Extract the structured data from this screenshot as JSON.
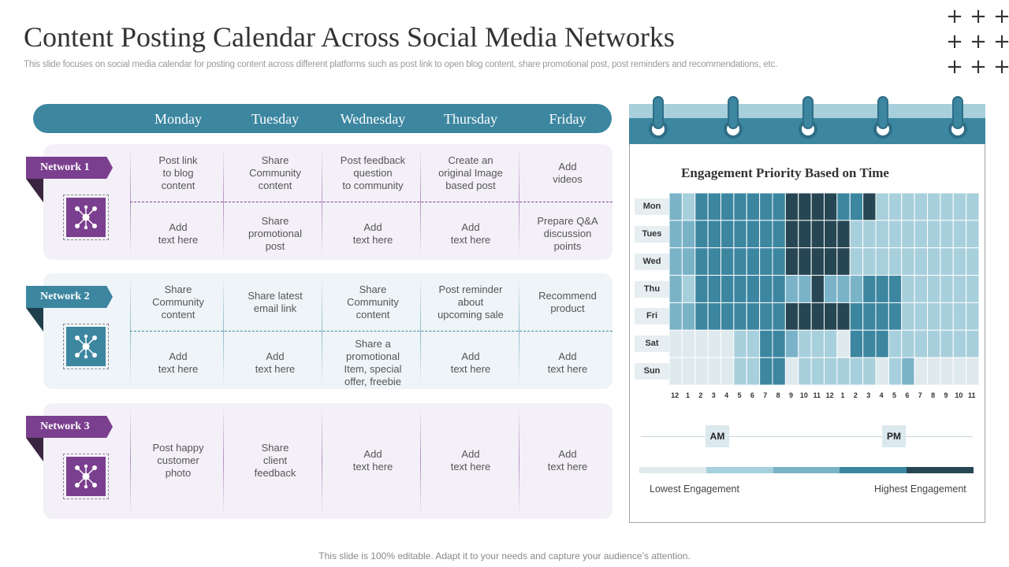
{
  "title": "Content Posting Calendar Across Social Media Networks",
  "subtitle": "This slide focuses on social media calendar for posting content across different platforms such as post link to open blog content, share promotional post, post reminders and recommendations, etc.",
  "days": [
    "Monday",
    "Tuesday",
    "Wednesday",
    "Thursday",
    "Friday"
  ],
  "networks": [
    {
      "label": "Network 1",
      "theme": "purple",
      "top_row": [
        "Post link\nto blog\ncontent",
        "Share\nCommunity\ncontent",
        "Post feedback\nquestion\nto community",
        "Create  an\noriginal Image\nbased post",
        "Add\nvideos"
      ],
      "bottom_row": [
        "Add\ntext here",
        "Share\npromotional\npost",
        "Add\ntext here",
        "Add\ntext here",
        "Prepare  Q&A\ndiscussion\npoints"
      ]
    },
    {
      "label": "Network 2",
      "theme": "teal",
      "top_row": [
        "Share\nCommunity\ncontent",
        "Share latest\nemail link",
        "Share\nCommunity\ncontent",
        "Post reminder\nabout\nupcoming sale",
        "Recommend\nproduct"
      ],
      "bottom_row": [
        "Add\ntext here",
        "Add\ntext here",
        "Share  a\npromotional\nItem,  special\noffer,  freebie",
        "Add\ntext here",
        "Add\ntext here"
      ]
    },
    {
      "label": "Network 3",
      "theme": "purple",
      "row": [
        "Post happy\ncustomer\nphoto",
        "Share\nclient\nfeedback",
        "Add\ntext here",
        "Add\ntext here",
        "Add\ntext here"
      ]
    }
  ],
  "icons": {
    "network": "network-nodes-icon",
    "decoration": "plus-icon"
  },
  "colors": {
    "purple": "#7b3f8f",
    "teal": "#3c86a0",
    "heat_levels": [
      "#dfeaee",
      "#a8cfdc",
      "#7ab3c7",
      "#3c86a0",
      "#264653"
    ]
  },
  "chart_data": {
    "type": "heatmap",
    "title": "Engagement Priority Based on Time",
    "y_categories": [
      "Mon",
      "Tues",
      "Wed",
      "Thu",
      "Fri",
      "Sat",
      "Sun"
    ],
    "x_categories": [
      "12",
      "1",
      "2",
      "3",
      "4",
      "5",
      "6",
      "7",
      "8",
      "9",
      "10",
      "11",
      "12",
      "1",
      "2",
      "3",
      "4",
      "5",
      "6",
      "7",
      "8",
      "9",
      "10",
      "11"
    ],
    "period_labels": [
      "AM",
      "PM"
    ],
    "levels": 5,
    "values": [
      [
        2,
        1,
        3,
        3,
        3,
        3,
        3,
        3,
        3,
        4,
        4,
        4,
        4,
        3,
        3,
        4,
        1,
        1,
        1,
        1,
        1,
        1,
        1,
        1
      ],
      [
        2,
        2,
        3,
        3,
        3,
        3,
        3,
        3,
        3,
        4,
        4,
        4,
        4,
        4,
        1,
        1,
        1,
        1,
        1,
        1,
        1,
        1,
        1,
        1
      ],
      [
        2,
        2,
        3,
        3,
        3,
        3,
        3,
        3,
        3,
        4,
        4,
        4,
        4,
        4,
        1,
        1,
        1,
        1,
        1,
        1,
        1,
        1,
        1,
        1
      ],
      [
        2,
        1,
        3,
        3,
        3,
        3,
        3,
        3,
        3,
        2,
        2,
        4,
        2,
        2,
        2,
        3,
        3,
        3,
        1,
        1,
        1,
        1,
        1,
        1
      ],
      [
        2,
        2,
        3,
        3,
        3,
        3,
        3,
        3,
        3,
        4,
        4,
        4,
        4,
        4,
        3,
        3,
        3,
        3,
        1,
        1,
        1,
        1,
        1,
        1
      ],
      [
        0,
        0,
        0,
        0,
        0,
        1,
        1,
        3,
        3,
        2,
        1,
        1,
        1,
        0,
        3,
        3,
        3,
        1,
        1,
        1,
        1,
        1,
        1,
        1
      ],
      [
        0,
        0,
        0,
        0,
        0,
        1,
        1,
        3,
        3,
        0,
        1,
        1,
        1,
        1,
        1,
        1,
        0,
        1,
        2,
        0,
        0,
        0,
        0,
        0
      ]
    ],
    "legend": [
      "Lowest Engagement",
      "Highest Engagement"
    ],
    "grid": true
  },
  "footer": "This slide is 100% editable. Adapt it to your needs and capture your audience’s attention."
}
